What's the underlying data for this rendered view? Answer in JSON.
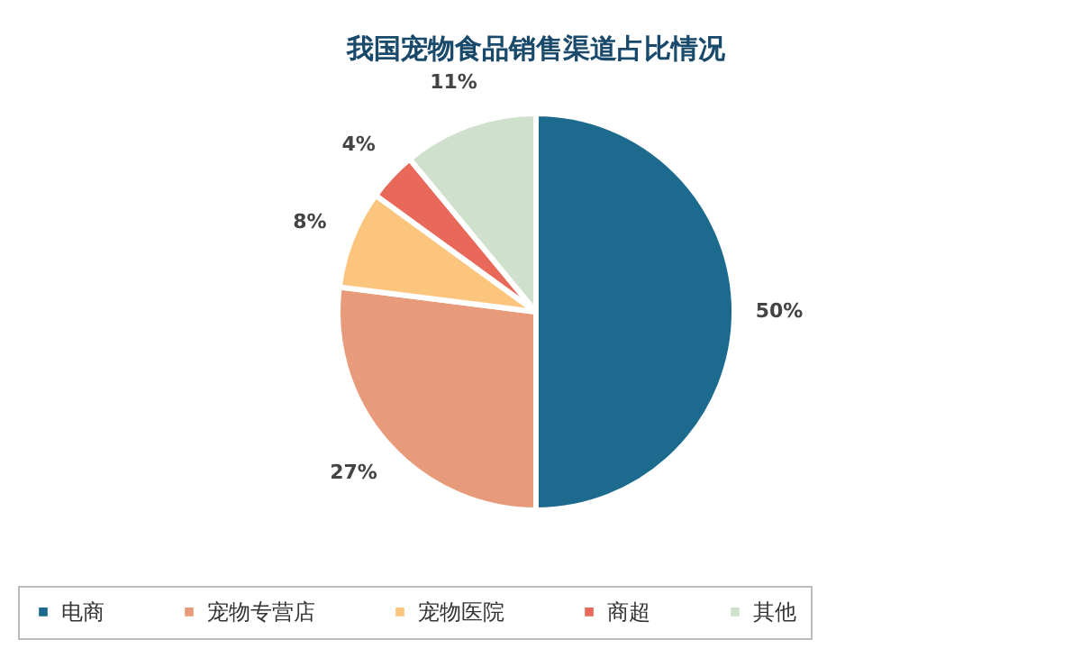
{
  "chart_data": {
    "type": "pie",
    "title": "我国宠物食品销售渠道占比情况",
    "categories": [
      "电商",
      "宠物专营店",
      "宠物医院",
      "商超",
      "其他"
    ],
    "values": [
      50,
      27,
      8,
      4,
      11
    ],
    "colors": [
      "#1c6a8e",
      "#e89b7a",
      "#fcc57e",
      "#e8685a",
      "#cfe0cc"
    ],
    "value_labels": [
      "50%",
      "27%",
      "8%",
      "4%",
      "11%"
    ],
    "legend": "bottom"
  }
}
